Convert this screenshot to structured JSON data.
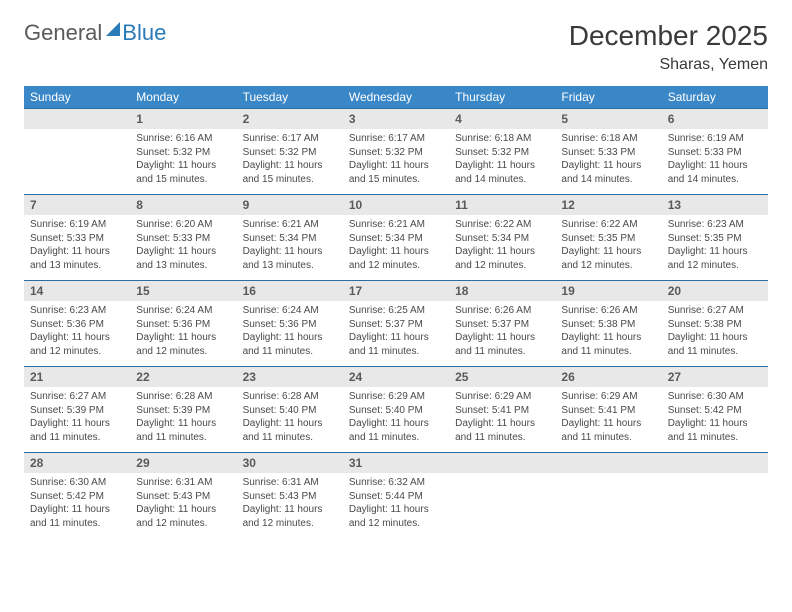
{
  "logo": {
    "text1": "General",
    "text2": "Blue"
  },
  "title": "December 2025",
  "location": "Sharas, Yemen",
  "colors": {
    "header_bg": "#3a87c7",
    "header_text": "#ffffff",
    "daynum_bg": "#e8e8e8",
    "daynum_text": "#5a5a5a",
    "row_border": "#2a6ea8",
    "body_text": "#4a4a4a",
    "logo_gray": "#5a5a5a",
    "logo_blue": "#2a7ab8"
  },
  "dow": [
    "Sunday",
    "Monday",
    "Tuesday",
    "Wednesday",
    "Thursday",
    "Friday",
    "Saturday"
  ],
  "weeks": [
    {
      "nums": [
        "",
        "1",
        "2",
        "3",
        "4",
        "5",
        "6"
      ],
      "cells": [
        null,
        {
          "sunrise": "Sunrise: 6:16 AM",
          "sunset": "Sunset: 5:32 PM",
          "daylight": "Daylight: 11 hours and 15 minutes."
        },
        {
          "sunrise": "Sunrise: 6:17 AM",
          "sunset": "Sunset: 5:32 PM",
          "daylight": "Daylight: 11 hours and 15 minutes."
        },
        {
          "sunrise": "Sunrise: 6:17 AM",
          "sunset": "Sunset: 5:32 PM",
          "daylight": "Daylight: 11 hours and 15 minutes."
        },
        {
          "sunrise": "Sunrise: 6:18 AM",
          "sunset": "Sunset: 5:32 PM",
          "daylight": "Daylight: 11 hours and 14 minutes."
        },
        {
          "sunrise": "Sunrise: 6:18 AM",
          "sunset": "Sunset: 5:33 PM",
          "daylight": "Daylight: 11 hours and 14 minutes."
        },
        {
          "sunrise": "Sunrise: 6:19 AM",
          "sunset": "Sunset: 5:33 PM",
          "daylight": "Daylight: 11 hours and 14 minutes."
        }
      ]
    },
    {
      "nums": [
        "7",
        "8",
        "9",
        "10",
        "11",
        "12",
        "13"
      ],
      "cells": [
        {
          "sunrise": "Sunrise: 6:19 AM",
          "sunset": "Sunset: 5:33 PM",
          "daylight": "Daylight: 11 hours and 13 minutes."
        },
        {
          "sunrise": "Sunrise: 6:20 AM",
          "sunset": "Sunset: 5:33 PM",
          "daylight": "Daylight: 11 hours and 13 minutes."
        },
        {
          "sunrise": "Sunrise: 6:21 AM",
          "sunset": "Sunset: 5:34 PM",
          "daylight": "Daylight: 11 hours and 13 minutes."
        },
        {
          "sunrise": "Sunrise: 6:21 AM",
          "sunset": "Sunset: 5:34 PM",
          "daylight": "Daylight: 11 hours and 12 minutes."
        },
        {
          "sunrise": "Sunrise: 6:22 AM",
          "sunset": "Sunset: 5:34 PM",
          "daylight": "Daylight: 11 hours and 12 minutes."
        },
        {
          "sunrise": "Sunrise: 6:22 AM",
          "sunset": "Sunset: 5:35 PM",
          "daylight": "Daylight: 11 hours and 12 minutes."
        },
        {
          "sunrise": "Sunrise: 6:23 AM",
          "sunset": "Sunset: 5:35 PM",
          "daylight": "Daylight: 11 hours and 12 minutes."
        }
      ]
    },
    {
      "nums": [
        "14",
        "15",
        "16",
        "17",
        "18",
        "19",
        "20"
      ],
      "cells": [
        {
          "sunrise": "Sunrise: 6:23 AM",
          "sunset": "Sunset: 5:36 PM",
          "daylight": "Daylight: 11 hours and 12 minutes."
        },
        {
          "sunrise": "Sunrise: 6:24 AM",
          "sunset": "Sunset: 5:36 PM",
          "daylight": "Daylight: 11 hours and 12 minutes."
        },
        {
          "sunrise": "Sunrise: 6:24 AM",
          "sunset": "Sunset: 5:36 PM",
          "daylight": "Daylight: 11 hours and 11 minutes."
        },
        {
          "sunrise": "Sunrise: 6:25 AM",
          "sunset": "Sunset: 5:37 PM",
          "daylight": "Daylight: 11 hours and 11 minutes."
        },
        {
          "sunrise": "Sunrise: 6:26 AM",
          "sunset": "Sunset: 5:37 PM",
          "daylight": "Daylight: 11 hours and 11 minutes."
        },
        {
          "sunrise": "Sunrise: 6:26 AM",
          "sunset": "Sunset: 5:38 PM",
          "daylight": "Daylight: 11 hours and 11 minutes."
        },
        {
          "sunrise": "Sunrise: 6:27 AM",
          "sunset": "Sunset: 5:38 PM",
          "daylight": "Daylight: 11 hours and 11 minutes."
        }
      ]
    },
    {
      "nums": [
        "21",
        "22",
        "23",
        "24",
        "25",
        "26",
        "27"
      ],
      "cells": [
        {
          "sunrise": "Sunrise: 6:27 AM",
          "sunset": "Sunset: 5:39 PM",
          "daylight": "Daylight: 11 hours and 11 minutes."
        },
        {
          "sunrise": "Sunrise: 6:28 AM",
          "sunset": "Sunset: 5:39 PM",
          "daylight": "Daylight: 11 hours and 11 minutes."
        },
        {
          "sunrise": "Sunrise: 6:28 AM",
          "sunset": "Sunset: 5:40 PM",
          "daylight": "Daylight: 11 hours and 11 minutes."
        },
        {
          "sunrise": "Sunrise: 6:29 AM",
          "sunset": "Sunset: 5:40 PM",
          "daylight": "Daylight: 11 hours and 11 minutes."
        },
        {
          "sunrise": "Sunrise: 6:29 AM",
          "sunset": "Sunset: 5:41 PM",
          "daylight": "Daylight: 11 hours and 11 minutes."
        },
        {
          "sunrise": "Sunrise: 6:29 AM",
          "sunset": "Sunset: 5:41 PM",
          "daylight": "Daylight: 11 hours and 11 minutes."
        },
        {
          "sunrise": "Sunrise: 6:30 AM",
          "sunset": "Sunset: 5:42 PM",
          "daylight": "Daylight: 11 hours and 11 minutes."
        }
      ]
    },
    {
      "nums": [
        "28",
        "29",
        "30",
        "31",
        "",
        "",
        ""
      ],
      "cells": [
        {
          "sunrise": "Sunrise: 6:30 AM",
          "sunset": "Sunset: 5:42 PM",
          "daylight": "Daylight: 11 hours and 11 minutes."
        },
        {
          "sunrise": "Sunrise: 6:31 AM",
          "sunset": "Sunset: 5:43 PM",
          "daylight": "Daylight: 11 hours and 12 minutes."
        },
        {
          "sunrise": "Sunrise: 6:31 AM",
          "sunset": "Sunset: 5:43 PM",
          "daylight": "Daylight: 11 hours and 12 minutes."
        },
        {
          "sunrise": "Sunrise: 6:32 AM",
          "sunset": "Sunset: 5:44 PM",
          "daylight": "Daylight: 11 hours and 12 minutes."
        },
        null,
        null,
        null
      ]
    }
  ]
}
